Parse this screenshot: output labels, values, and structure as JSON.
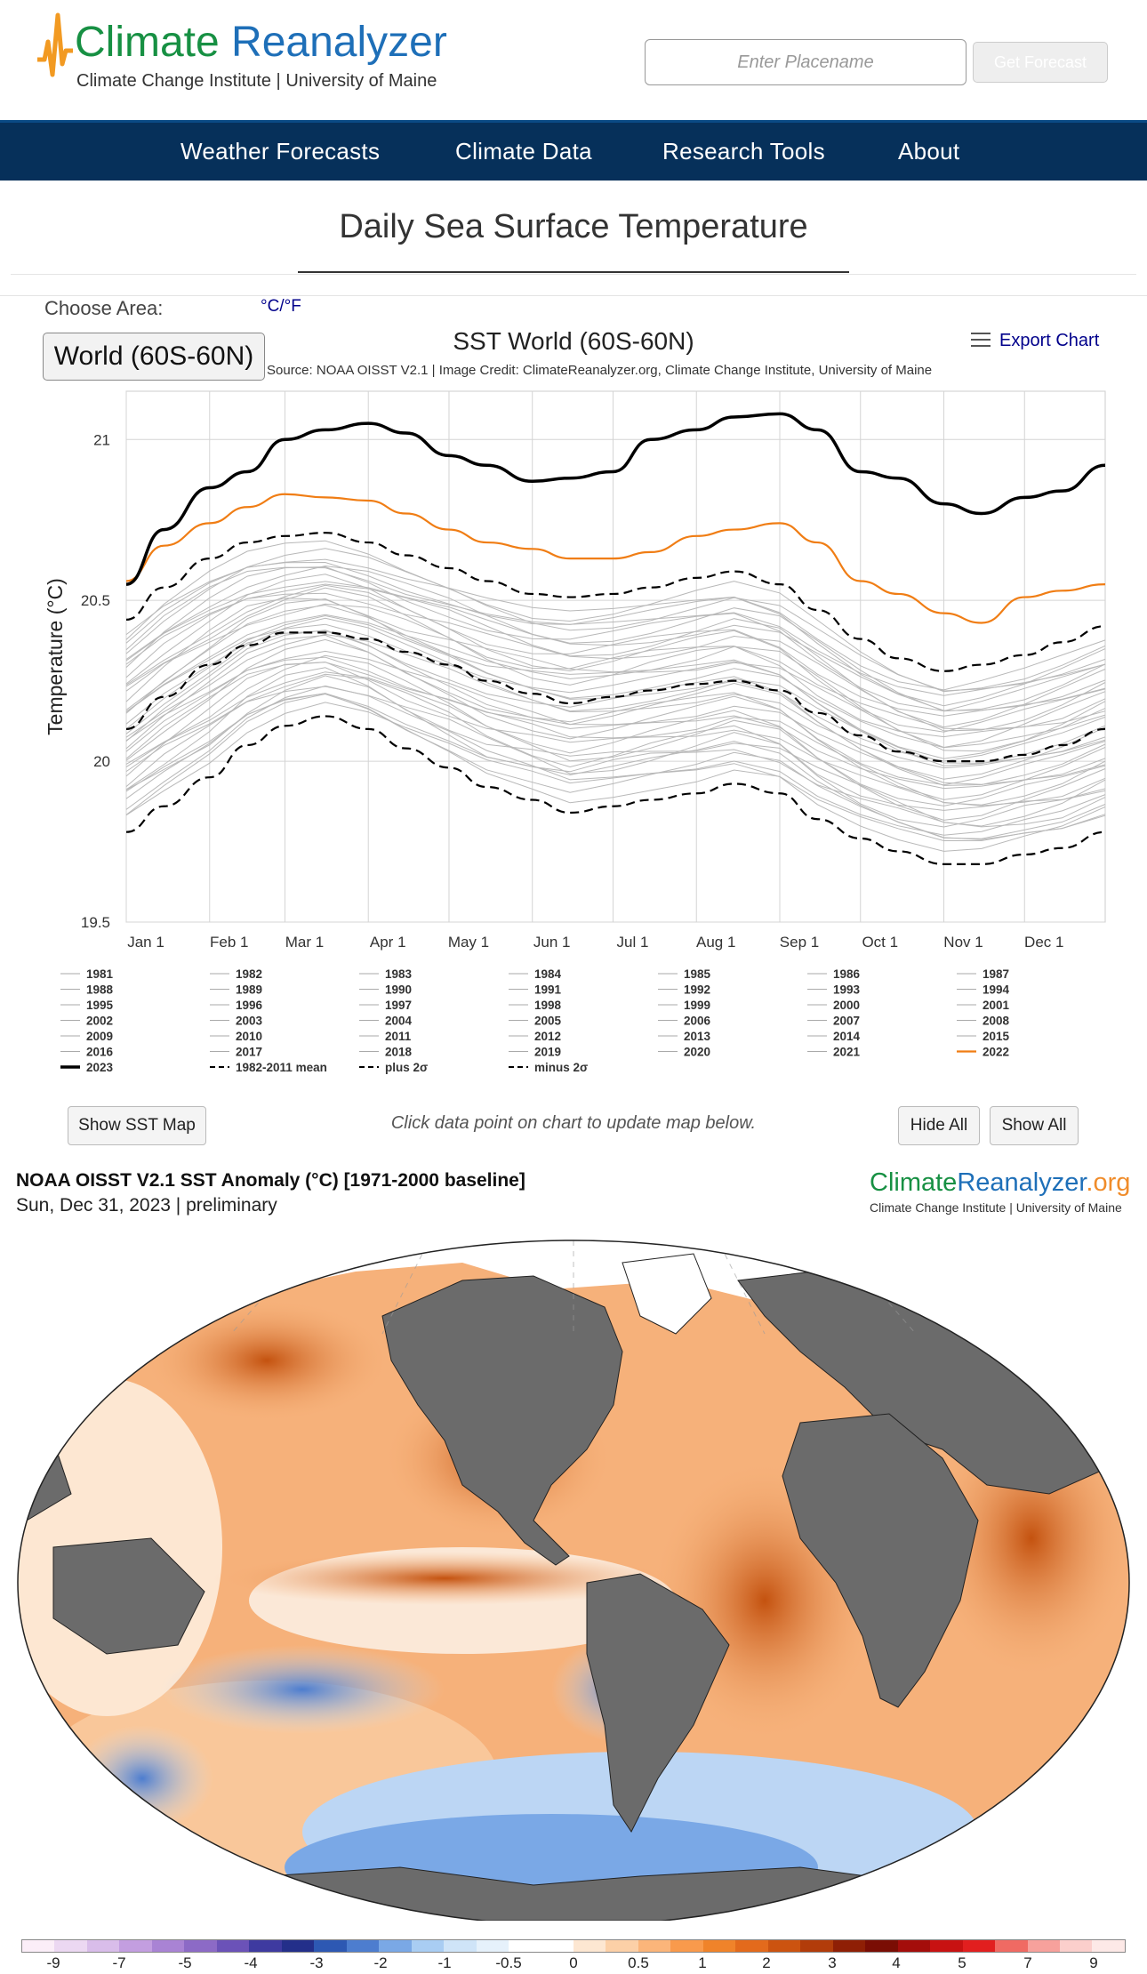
{
  "header": {
    "brand_word1": "Climate",
    "brand_word2": "Reanalyzer",
    "subtitle": "Climate Change Institute | University of Maine",
    "search_placeholder": "Enter Placename",
    "forecast_button": "Get Forecast",
    "brand_colors": {
      "green": "#179043",
      "blue": "#1e6fb8",
      "logo_orange": "#f29a22"
    }
  },
  "nav": {
    "items": [
      {
        "label": "Weather Forecasts"
      },
      {
        "label": "Climate Data"
      },
      {
        "label": "Research Tools"
      },
      {
        "label": "About"
      }
    ],
    "background": "#06305a"
  },
  "page": {
    "title": "Daily Sea Surface Temperature",
    "choose_area_label": "Choose Area:",
    "units_link": "°C/°F",
    "area_selected": "World (60S-60N)"
  },
  "chart": {
    "export_label": "Export Chart",
    "source": "Source: NOAA OISST V2.1 | Image Credit: ClimateReanalyzer.org, Climate Change Institute, University of Maine",
    "legend": [
      "1981",
      "1982",
      "1983",
      "1984",
      "1985",
      "1986",
      "1987",
      "1988",
      "1989",
      "1990",
      "1991",
      "1992",
      "1993",
      "1994",
      "1995",
      "1996",
      "1997",
      "1998",
      "1999",
      "2000",
      "2001",
      "2002",
      "2003",
      "2004",
      "2005",
      "2006",
      "2007",
      "2008",
      "2009",
      "2010",
      "2011",
      "2012",
      "2013",
      "2014",
      "2015",
      "2016",
      "2017",
      "2018",
      "2019",
      "2020",
      "2021",
      "2022",
      "2023",
      "1982-2011 mean",
      "plus 2σ",
      "minus 2σ"
    ]
  },
  "chart_data": {
    "type": "line",
    "title": "SST World (60S-60N)",
    "ylabel": "Temperature (°C)",
    "ylim": [
      19.5,
      21.15
    ],
    "yticks": [
      19.5,
      20,
      20.5,
      21
    ],
    "xticks": [
      "Jan 1",
      "Feb 1",
      "Mar 1",
      "Apr 1",
      "May 1",
      "Jun 1",
      "Jul 1",
      "Aug 1",
      "Sep 1",
      "Oct 1",
      "Nov 1",
      "Dec 1"
    ],
    "x_day_of_year": [
      1,
      15,
      32,
      46,
      60,
      75,
      91,
      105,
      121,
      135,
      152,
      166,
      182,
      196,
      213,
      227,
      244,
      258,
      274,
      288,
      305,
      319,
      335,
      349,
      365
    ],
    "series": [
      {
        "name": "2023",
        "color": "#000000",
        "style": "bold",
        "values": [
          20.55,
          20.72,
          20.85,
          20.9,
          21.0,
          21.03,
          21.05,
          21.02,
          20.95,
          20.92,
          20.87,
          20.88,
          20.9,
          21.0,
          21.03,
          21.07,
          21.08,
          21.03,
          20.9,
          20.88,
          20.8,
          20.77,
          20.82,
          20.84,
          20.92
        ]
      },
      {
        "name": "2022",
        "color": "#f07d14",
        "style": "normal",
        "values": [
          20.56,
          20.67,
          20.74,
          20.79,
          20.83,
          20.82,
          20.81,
          20.77,
          20.72,
          20.68,
          20.66,
          20.63,
          20.63,
          20.65,
          20.7,
          20.72,
          20.74,
          20.68,
          20.56,
          20.52,
          20.46,
          20.43,
          20.51,
          20.53,
          20.55
        ]
      },
      {
        "name": "1982-2011 mean",
        "color": "#000000",
        "style": "dash",
        "values": [
          20.1,
          20.2,
          20.3,
          20.36,
          20.4,
          20.4,
          20.38,
          20.34,
          20.3,
          20.25,
          20.21,
          20.18,
          20.2,
          20.22,
          20.24,
          20.25,
          20.22,
          20.15,
          20.08,
          20.03,
          20.0,
          20.0,
          20.02,
          20.05,
          20.1
        ]
      },
      {
        "name": "plus 2σ",
        "color": "#000000",
        "style": "dash",
        "values": [
          20.44,
          20.54,
          20.63,
          20.68,
          20.7,
          20.71,
          20.68,
          20.64,
          20.6,
          20.56,
          20.52,
          20.51,
          20.52,
          20.54,
          20.57,
          20.59,
          20.55,
          20.47,
          20.38,
          20.32,
          20.28,
          20.3,
          20.33,
          20.37,
          20.42
        ]
      },
      {
        "name": "minus 2σ",
        "color": "#000000",
        "style": "dash",
        "values": [
          19.78,
          19.86,
          19.95,
          20.05,
          20.11,
          20.14,
          20.1,
          20.04,
          19.98,
          19.92,
          19.88,
          19.84,
          19.86,
          19.88,
          19.9,
          19.93,
          19.9,
          19.82,
          19.76,
          19.72,
          19.68,
          19.68,
          19.71,
          19.73,
          19.78
        ]
      }
    ]
  },
  "actions": {
    "show_map": "Show SST Map",
    "hint": "Click data point on chart to update map below.",
    "hide_all": "Hide All",
    "show_all": "Show All"
  },
  "map": {
    "title": "NOAA OISST V2.1 SST Anomaly (°C) [1971-2000 baseline]",
    "date": "Sun, Dec 31, 2023 | preliminary",
    "brand_c": "Climate",
    "brand_r": "Reanalyzer",
    "brand_o": ".org",
    "brand_sub": "Climate Change Institute | University of Maine",
    "land_color": "#6b6b6b",
    "colorbar_labels": [
      "-9",
      "-7",
      "-5",
      "-4",
      "-3",
      "-2",
      "-1",
      "-0.5",
      "0",
      "0.5",
      "1",
      "2",
      "3",
      "4",
      "5",
      "7",
      "9"
    ],
    "colorbar_colors": [
      "#fbeef8",
      "#ecd8f2",
      "#d9bdea",
      "#c39ee0",
      "#a983d4",
      "#8c6ac6",
      "#6b52b8",
      "#3e3aa0",
      "#232f8a",
      "#2d58b3",
      "#4d7dcf",
      "#7aa8e6",
      "#a9cdf3",
      "#cfe4f8",
      "#e6f1fb",
      "#ffffff",
      "#ffffff",
      "#fde7d2",
      "#fcd0a7",
      "#fbb57a",
      "#f99a4c",
      "#f0832a",
      "#e36a1c",
      "#cc5310",
      "#b23c0a",
      "#8f1f05",
      "#7a0d04",
      "#a40d0b",
      "#c81212",
      "#e21f1f",
      "#f06a63",
      "#f7a19c",
      "#fbcfcc",
      "#fde9e7"
    ]
  }
}
